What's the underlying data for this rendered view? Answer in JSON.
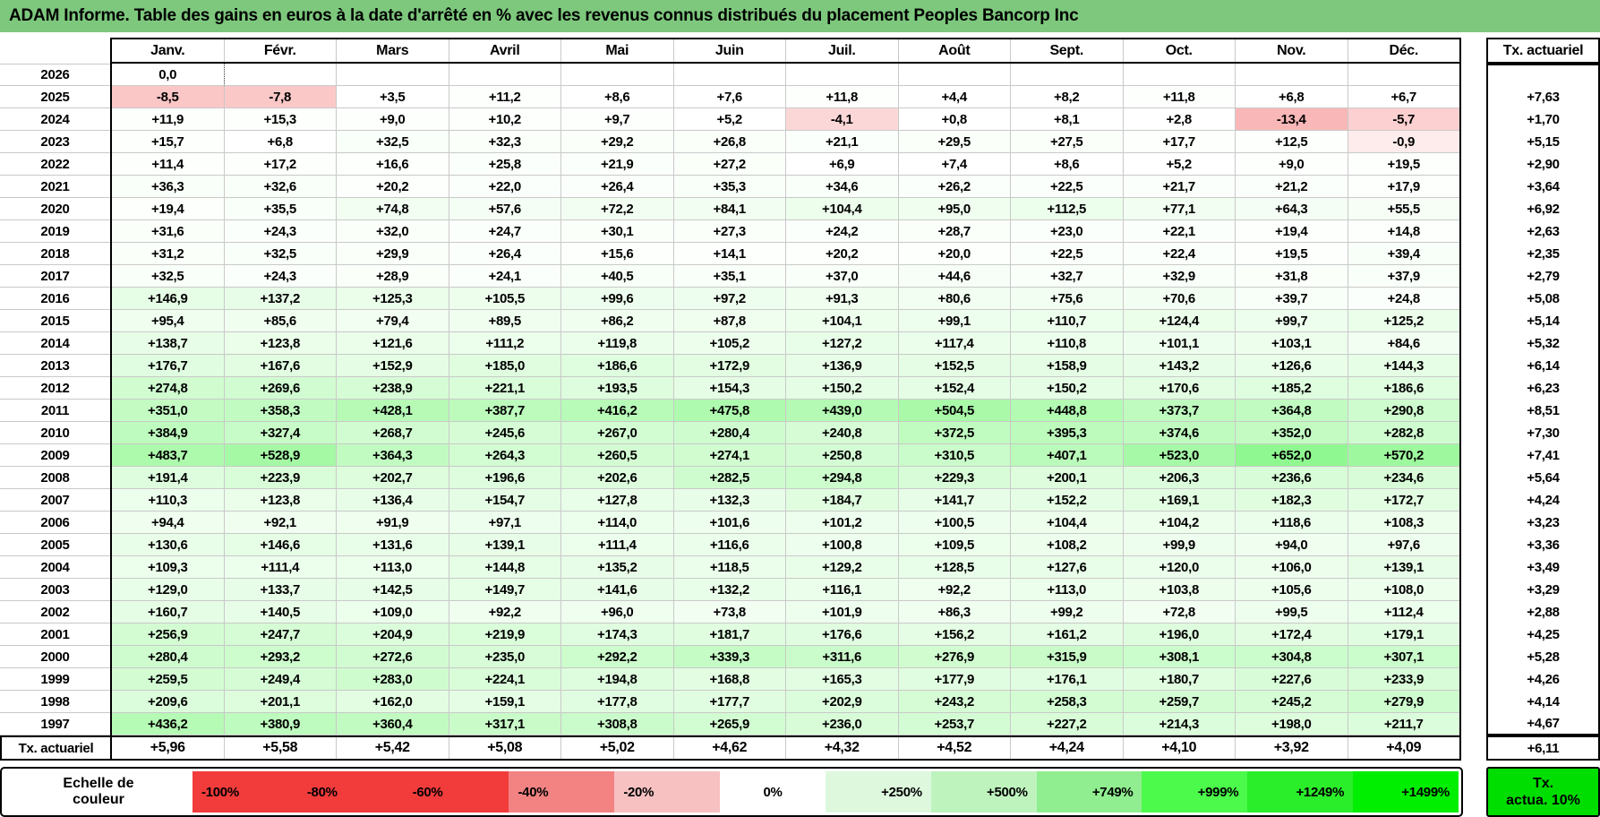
{
  "title": "ADAM Informe. Table des gains en euros à la date d'arrêté en % avec les revenus connus distribués du placement Peoples Bancorp Inc",
  "columns": [
    "Janv.",
    "Févr.",
    "Mars",
    "Avril",
    "Mai",
    "Juin",
    "Juil.",
    "Août",
    "Sept.",
    "Oct.",
    "Nov.",
    "Déc."
  ],
  "tx_header": "Tx. actuariel",
  "rows": [
    {
      "year": "2026",
      "values": [
        "0,0",
        "",
        "",
        "",
        "",
        "",
        "",
        "",
        "",
        "",
        "",
        ""
      ],
      "tx": ""
    },
    {
      "year": "2025",
      "values": [
        "-8,5",
        "-7,8",
        "+3,5",
        "+11,2",
        "+8,6",
        "+7,6",
        "+11,8",
        "+4,4",
        "+8,2",
        "+11,8",
        "+6,8",
        "+6,7"
      ],
      "tx": "+7,63"
    },
    {
      "year": "2024",
      "values": [
        "+11,9",
        "+15,3",
        "+9,0",
        "+10,2",
        "+9,7",
        "+5,2",
        "-4,1",
        "+0,8",
        "+8,1",
        "+2,8",
        "-13,4",
        "-5,7"
      ],
      "tx": "+1,70"
    },
    {
      "year": "2023",
      "values": [
        "+15,7",
        "+6,8",
        "+32,5",
        "+32,3",
        "+29,2",
        "+26,8",
        "+21,1",
        "+29,5",
        "+27,5",
        "+17,7",
        "+12,5",
        "-0,9"
      ],
      "tx": "+5,15"
    },
    {
      "year": "2022",
      "values": [
        "+11,4",
        "+17,2",
        "+16,6",
        "+25,8",
        "+21,9",
        "+27,2",
        "+6,9",
        "+7,4",
        "+8,6",
        "+5,2",
        "+9,0",
        "+19,5"
      ],
      "tx": "+2,90"
    },
    {
      "year": "2021",
      "values": [
        "+36,3",
        "+32,6",
        "+20,2",
        "+22,0",
        "+26,4",
        "+35,3",
        "+34,6",
        "+26,2",
        "+22,5",
        "+21,7",
        "+21,2",
        "+17,9"
      ],
      "tx": "+3,64"
    },
    {
      "year": "2020",
      "values": [
        "+19,4",
        "+35,5",
        "+74,8",
        "+57,6",
        "+72,2",
        "+84,1",
        "+104,4",
        "+95,0",
        "+112,5",
        "+77,1",
        "+64,3",
        "+55,5"
      ],
      "tx": "+6,92"
    },
    {
      "year": "2019",
      "values": [
        "+31,6",
        "+24,3",
        "+32,0",
        "+24,7",
        "+30,1",
        "+27,3",
        "+24,2",
        "+28,7",
        "+23,0",
        "+22,1",
        "+19,4",
        "+14,8"
      ],
      "tx": "+2,63"
    },
    {
      "year": "2018",
      "values": [
        "+31,2",
        "+32,5",
        "+29,9",
        "+26,4",
        "+15,6",
        "+14,1",
        "+20,2",
        "+20,0",
        "+22,5",
        "+22,4",
        "+19,5",
        "+39,4"
      ],
      "tx": "+2,35"
    },
    {
      "year": "2017",
      "values": [
        "+32,5",
        "+24,3",
        "+28,9",
        "+24,1",
        "+40,5",
        "+35,1",
        "+37,0",
        "+44,6",
        "+32,7",
        "+32,9",
        "+31,8",
        "+37,9"
      ],
      "tx": "+2,79"
    },
    {
      "year": "2016",
      "values": [
        "+146,9",
        "+137,2",
        "+125,3",
        "+105,5",
        "+99,6",
        "+97,2",
        "+91,3",
        "+80,6",
        "+75,6",
        "+70,6",
        "+39,7",
        "+24,8"
      ],
      "tx": "+5,08"
    },
    {
      "year": "2015",
      "values": [
        "+95,4",
        "+85,6",
        "+79,4",
        "+89,5",
        "+86,2",
        "+87,8",
        "+104,1",
        "+99,1",
        "+110,7",
        "+124,4",
        "+99,7",
        "+125,2"
      ],
      "tx": "+5,14"
    },
    {
      "year": "2014",
      "values": [
        "+138,7",
        "+123,8",
        "+121,6",
        "+111,2",
        "+119,8",
        "+105,2",
        "+127,2",
        "+117,4",
        "+110,8",
        "+101,1",
        "+103,1",
        "+84,6"
      ],
      "tx": "+5,32"
    },
    {
      "year": "2013",
      "values": [
        "+176,7",
        "+167,6",
        "+152,9",
        "+185,0",
        "+186,6",
        "+172,9",
        "+136,9",
        "+152,5",
        "+158,9",
        "+143,2",
        "+126,6",
        "+144,3"
      ],
      "tx": "+6,14"
    },
    {
      "year": "2012",
      "values": [
        "+274,8",
        "+269,6",
        "+238,9",
        "+221,1",
        "+193,5",
        "+154,3",
        "+150,2",
        "+152,4",
        "+150,2",
        "+170,6",
        "+185,2",
        "+186,6"
      ],
      "tx": "+6,23"
    },
    {
      "year": "2011",
      "values": [
        "+351,0",
        "+358,3",
        "+428,1",
        "+387,7",
        "+416,2",
        "+475,8",
        "+439,0",
        "+504,5",
        "+448,8",
        "+373,7",
        "+364,8",
        "+290,8"
      ],
      "tx": "+8,51"
    },
    {
      "year": "2010",
      "values": [
        "+384,9",
        "+327,4",
        "+268,7",
        "+245,6",
        "+267,0",
        "+280,4",
        "+240,8",
        "+372,5",
        "+395,3",
        "+374,6",
        "+352,0",
        "+282,8"
      ],
      "tx": "+7,30"
    },
    {
      "year": "2009",
      "values": [
        "+483,7",
        "+528,9",
        "+364,3",
        "+264,3",
        "+260,5",
        "+274,1",
        "+250,8",
        "+310,5",
        "+407,1",
        "+523,0",
        "+652,0",
        "+570,2"
      ],
      "tx": "+7,41"
    },
    {
      "year": "2008",
      "values": [
        "+191,4",
        "+223,9",
        "+202,7",
        "+196,6",
        "+202,6",
        "+282,5",
        "+294,8",
        "+229,3",
        "+200,1",
        "+206,3",
        "+236,6",
        "+234,6"
      ],
      "tx": "+5,64"
    },
    {
      "year": "2007",
      "values": [
        "+110,3",
        "+123,8",
        "+136,4",
        "+154,7",
        "+127,8",
        "+132,3",
        "+184,7",
        "+141,7",
        "+152,2",
        "+169,1",
        "+182,3",
        "+172,7"
      ],
      "tx": "+4,24"
    },
    {
      "year": "2006",
      "values": [
        "+94,4",
        "+92,1",
        "+91,9",
        "+97,1",
        "+114,0",
        "+101,6",
        "+101,2",
        "+100,5",
        "+104,4",
        "+104,2",
        "+118,6",
        "+108,3"
      ],
      "tx": "+3,23"
    },
    {
      "year": "2005",
      "values": [
        "+130,6",
        "+146,6",
        "+131,6",
        "+139,1",
        "+111,4",
        "+116,6",
        "+100,8",
        "+109,5",
        "+108,2",
        "+99,9",
        "+94,0",
        "+97,6"
      ],
      "tx": "+3,36"
    },
    {
      "year": "2004",
      "values": [
        "+109,3",
        "+111,4",
        "+113,0",
        "+144,8",
        "+135,2",
        "+118,5",
        "+129,2",
        "+128,5",
        "+127,6",
        "+120,0",
        "+106,0",
        "+139,1"
      ],
      "tx": "+3,49"
    },
    {
      "year": "2003",
      "values": [
        "+129,0",
        "+133,7",
        "+142,5",
        "+149,7",
        "+141,6",
        "+132,2",
        "+116,1",
        "+92,2",
        "+113,0",
        "+103,8",
        "+105,6",
        "+108,0"
      ],
      "tx": "+3,29"
    },
    {
      "year": "2002",
      "values": [
        "+160,7",
        "+140,5",
        "+109,0",
        "+92,2",
        "+96,0",
        "+73,8",
        "+101,9",
        "+86,3",
        "+99,2",
        "+72,8",
        "+99,5",
        "+112,4"
      ],
      "tx": "+2,88"
    },
    {
      "year": "2001",
      "values": [
        "+256,9",
        "+247,7",
        "+204,9",
        "+219,9",
        "+174,3",
        "+181,7",
        "+176,6",
        "+156,2",
        "+161,2",
        "+196,0",
        "+172,4",
        "+179,1"
      ],
      "tx": "+4,25"
    },
    {
      "year": "2000",
      "values": [
        "+280,4",
        "+293,2",
        "+272,6",
        "+235,0",
        "+292,2",
        "+339,3",
        "+311,6",
        "+276,9",
        "+315,9",
        "+308,1",
        "+304,8",
        "+307,1"
      ],
      "tx": "+5,28"
    },
    {
      "year": "1999",
      "values": [
        "+259,5",
        "+249,4",
        "+283,0",
        "+224,1",
        "+194,8",
        "+168,8",
        "+165,3",
        "+177,9",
        "+176,1",
        "+180,7",
        "+227,6",
        "+233,9"
      ],
      "tx": "+4,26"
    },
    {
      "year": "1998",
      "values": [
        "+209,6",
        "+201,1",
        "+162,0",
        "+159,1",
        "+177,8",
        "+177,7",
        "+202,9",
        "+243,2",
        "+258,3",
        "+259,7",
        "+245,2",
        "+279,9"
      ],
      "tx": "+4,14"
    },
    {
      "year": "1997",
      "values": [
        "+436,2",
        "+380,9",
        "+360,4",
        "+317,1",
        "+308,8",
        "+265,9",
        "+236,0",
        "+253,7",
        "+227,2",
        "+214,3",
        "+198,0",
        "+211,7"
      ],
      "tx": "+4,67"
    }
  ],
  "tx_row": {
    "label": "Tx. actuariel",
    "values": [
      "+5,96",
      "+5,58",
      "+5,42",
      "+5,08",
      "+5,02",
      "+4,62",
      "+4,32",
      "+4,52",
      "+4,24",
      "+4,10",
      "+3,92",
      "+4,09"
    ],
    "tx": "+6,11"
  },
  "legend": {
    "label_line1": "Echelle de",
    "label_line2": "couleur",
    "stops": [
      {
        "label": "-100%",
        "color": "#f23b3b"
      },
      {
        "label": "-80%",
        "color": "#f23b3b"
      },
      {
        "label": "-60%",
        "color": "#f23b3b"
      },
      {
        "label": "-40%",
        "color": "#f38282"
      },
      {
        "label": "-20%",
        "color": "#f7c1c1"
      },
      {
        "label": "0%",
        "color": "#ffffff"
      },
      {
        "label": "+250%",
        "color": "#def8de"
      },
      {
        "label": "+500%",
        "color": "#bef3be"
      },
      {
        "label": "+749%",
        "color": "#90ee90"
      },
      {
        "label": "+999%",
        "color": "#4bfa4b"
      },
      {
        "label": "+1249%",
        "color": "#2bee2b"
      },
      {
        "label": "+1499%",
        "color": "#00ee00"
      }
    ],
    "tx_box_line1": "Tx.",
    "tx_box_line2": "actua. 10%"
  },
  "colors": {
    "title_bg": "#7dc87d",
    "negative_max": "#f23b3b",
    "positive_max": "#00ee00",
    "grid_line": "#c9c9c9",
    "tx_box_bg": "#00dd00"
  }
}
